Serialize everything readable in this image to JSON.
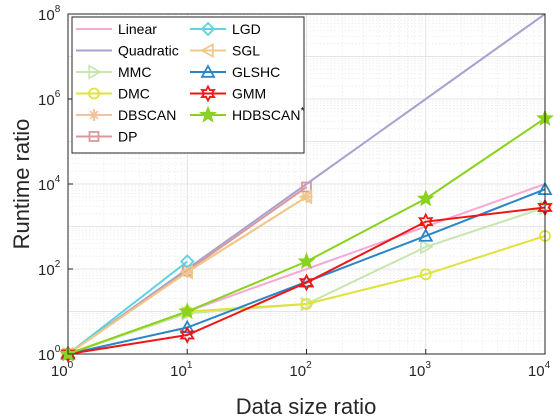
{
  "chart_data": {
    "type": "line",
    "title": "",
    "xlabel": "Data size ratio",
    "ylabel": "Runtime ratio",
    "x_scale": "log",
    "y_scale": "log",
    "xlim": [
      1,
      10000
    ],
    "ylim": [
      1,
      100000000
    ],
    "x_ticks": [
      {
        "base": "10",
        "exp": "0",
        "value": 1
      },
      {
        "base": "10",
        "exp": "1",
        "value": 10
      },
      {
        "base": "10",
        "exp": "2",
        "value": 100
      },
      {
        "base": "10",
        "exp": "3",
        "value": 1000
      },
      {
        "base": "10",
        "exp": "4",
        "value": 10000
      }
    ],
    "y_ticks": [
      {
        "base": "10",
        "exp": "0",
        "value": 1
      },
      {
        "base": "10",
        "exp": "2",
        "value": 100
      },
      {
        "base": "10",
        "exp": "4",
        "value": 10000
      },
      {
        "base": "10",
        "exp": "6",
        "value": 1000000
      },
      {
        "base": "10",
        "exp": "8",
        "value": 100000000
      }
    ],
    "grid": true,
    "legend_position": "top-left, two columns",
    "series": [
      {
        "name": "Linear",
        "color": "#f7a8d4",
        "marker": "none",
        "x": [
          1,
          10,
          100,
          1000,
          10000
        ],
        "y": [
          1,
          10,
          100,
          1000,
          10000
        ]
      },
      {
        "name": "Quadratic",
        "color": "#a9a2cf",
        "marker": "none",
        "x": [
          1,
          10,
          100,
          1000,
          10000
        ],
        "y": [
          1,
          100,
          10000,
          1000000,
          100000000
        ]
      },
      {
        "name": "MMC",
        "color": "#c8e5b0",
        "marker": "triangle-right",
        "x": [
          1,
          10,
          100,
          1000,
          10000
        ],
        "y": [
          1,
          9,
          15,
          330,
          2800
        ]
      },
      {
        "name": "DMC",
        "color": "#e0e33a",
        "marker": "circle",
        "x": [
          1,
          10,
          100,
          1000,
          10000
        ],
        "y": [
          1,
          10,
          15,
          75,
          600
        ]
      },
      {
        "name": "DBSCAN",
        "color": "#f2c39d",
        "marker": "plus-star",
        "x": [
          1,
          10,
          100
        ],
        "y": [
          1,
          85,
          5000
        ]
      },
      {
        "name": "DP",
        "color": "#d99a9c",
        "marker": "square",
        "x": [
          1,
          10,
          100
        ],
        "y": [
          1,
          90,
          8500
        ]
      },
      {
        "name": "LGD",
        "color": "#5cd3e0",
        "marker": "diamond",
        "x": [
          1,
          10
        ],
        "y": [
          1,
          150
        ]
      },
      {
        "name": "SGL",
        "color": "#f0c888",
        "marker": "triangle-left",
        "x": [
          1,
          10,
          100
        ],
        "y": [
          1,
          85,
          5000
        ]
      },
      {
        "name": "GLSHC",
        "color": "#2a86c6",
        "marker": "triangle-up",
        "x": [
          1,
          10,
          100,
          1000,
          10000
        ],
        "y": [
          1,
          4.2,
          50,
          600,
          7500
        ]
      },
      {
        "name": "GMM",
        "color": "#f01616",
        "marker": "hexagram",
        "x": [
          1,
          10,
          100,
          1000,
          10000
        ],
        "y": [
          1,
          2.8,
          48,
          1300,
          2800
        ]
      },
      {
        "name": "HDBSCAN",
        "legend_sup": "*",
        "color": "#8ad21e",
        "marker": "pentagram",
        "x": [
          1,
          10,
          100,
          1000,
          10000
        ],
        "y": [
          1,
          10,
          150,
          4500,
          350000
        ]
      }
    ]
  }
}
